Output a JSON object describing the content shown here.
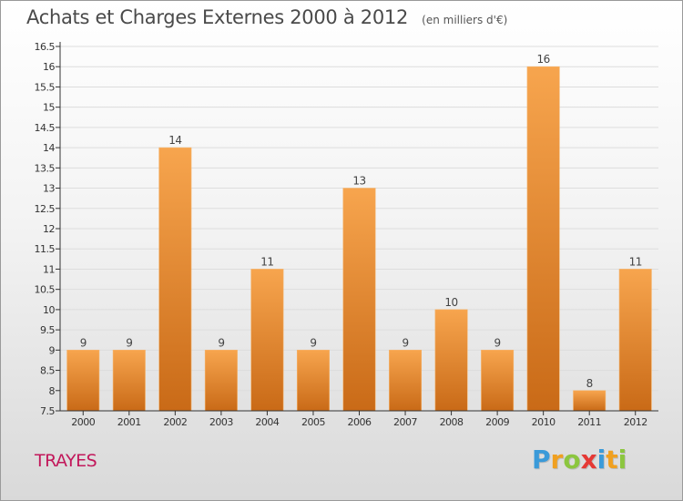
{
  "title": "Achats et Charges Externes 2000 à 2012",
  "subtitle": "(en milliers d'€)",
  "place": "TRAYES",
  "logo": {
    "text": "Proxiti",
    "letters": [
      {
        "ch": "P",
        "color": "#3a9ad9"
      },
      {
        "ch": "r",
        "color": "#f0a020"
      },
      {
        "ch": "o",
        "color": "#8cc63f"
      },
      {
        "ch": "x",
        "color": "#e53935"
      },
      {
        "ch": "i",
        "color": "#3a9ad9"
      },
      {
        "ch": "t",
        "color": "#f0a020"
      },
      {
        "ch": "i",
        "color": "#8cc63f"
      }
    ]
  },
  "colors": {
    "bar_light": "#f7a54e",
    "bar_dark": "#c96a17",
    "axis": "#333333",
    "grid": "#dddddd"
  },
  "chart_data": {
    "type": "bar",
    "categories": [
      "2000",
      "2001",
      "2002",
      "2003",
      "2004",
      "2005",
      "2006",
      "2007",
      "2008",
      "2009",
      "2010",
      "2011",
      "2012"
    ],
    "values": [
      9,
      9,
      14,
      9,
      11,
      9,
      13,
      9,
      10,
      9,
      16,
      8,
      11
    ],
    "data_labels": [
      "9",
      "9",
      "14",
      "9",
      "11",
      "9",
      "13",
      "9",
      "10",
      "9",
      "16",
      "8",
      "11"
    ],
    "yticks": [
      "7.5",
      "8",
      "8.5",
      "9",
      "9.5",
      "10",
      "10.5",
      "11",
      "11.5",
      "12",
      "12.5",
      "13",
      "13.5",
      "14",
      "14.5",
      "15",
      "15.5",
      "16",
      "16.5"
    ],
    "ylim": [
      7.5,
      16.5
    ],
    "title": "Achats et Charges Externes 2000 à 2012",
    "xlabel": "",
    "ylabel": "",
    "grid": true
  }
}
